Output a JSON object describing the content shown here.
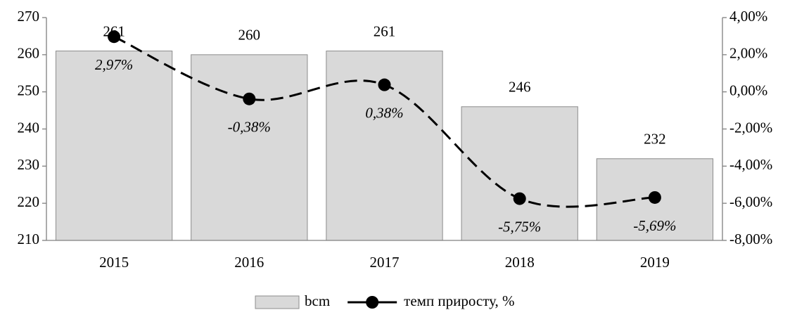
{
  "chart_data": {
    "type": "bar",
    "categories": [
      "2015",
      "2016",
      "2017",
      "2018",
      "2019"
    ],
    "series": [
      {
        "name": "bcm",
        "type": "bar",
        "color": "#d9d9d9",
        "values": [
          261,
          260,
          261,
          246,
          232
        ]
      },
      {
        "name": "темп приросту, %",
        "type": "line",
        "axis": "y2",
        "color": "#000000",
        "values": [
          2.97,
          -0.38,
          0.38,
          -5.75,
          -5.69
        ],
        "value_labels": [
          "2,97%",
          "-0,38%",
          "0,38%",
          "-5,75%",
          "-5,69%"
        ]
      }
    ],
    "ylim": [
      210,
      270
    ],
    "yticks": [
      210,
      220,
      230,
      240,
      250,
      260,
      270
    ],
    "y2lim": [
      -8,
      4
    ],
    "y2ticks": [
      {
        "value": -8,
        "label": "-8,00%"
      },
      {
        "value": -6,
        "label": "-6,00%"
      },
      {
        "value": -4,
        "label": "-4,00%"
      },
      {
        "value": -2,
        "label": "-2,00%"
      },
      {
        "value": 0,
        "label": "0,00%"
      },
      {
        "value": 2,
        "label": "2,00%"
      },
      {
        "value": 4,
        "label": "4,00%"
      }
    ],
    "legend": "bottom"
  }
}
